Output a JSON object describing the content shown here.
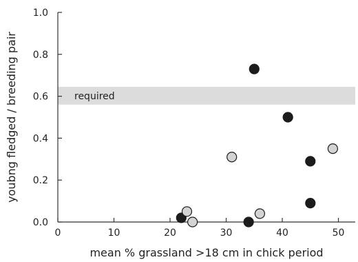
{
  "chart_data": {
    "type": "scatter",
    "xlabel": "mean % grassland >18 cm in chick period",
    "ylabel": "youbng fledged / breeding pair",
    "xlim": [
      0,
      53
    ],
    "ylim": [
      0,
      1.0
    ],
    "xticks": [
      "0",
      "10",
      "20",
      "30",
      "40",
      "50"
    ],
    "yticks": [
      "0.0",
      "0.2",
      "0.4",
      "0.6",
      "0.8",
      "1.0"
    ],
    "grid": false,
    "band": {
      "label": "required",
      "y_low": 0.56,
      "y_high": 0.645,
      "color": "#dcdcdc"
    },
    "series": [
      {
        "marker_color": "#1c1c1c",
        "points": [
          {
            "x": 35,
            "y": 0.73
          },
          {
            "x": 41,
            "y": 0.5
          },
          {
            "x": 45,
            "y": 0.29
          },
          {
            "x": 45,
            "y": 0.09
          },
          {
            "x": 22,
            "y": 0.02
          },
          {
            "x": 34,
            "y": 0.0
          }
        ]
      },
      {
        "marker_color": "#d3d3d3",
        "points": [
          {
            "x": 31,
            "y": 0.31
          },
          {
            "x": 49,
            "y": 0.35
          },
          {
            "x": 23,
            "y": 0.05
          },
          {
            "x": 24,
            "y": 0.0
          },
          {
            "x": 36,
            "y": 0.04
          }
        ]
      }
    ]
  }
}
